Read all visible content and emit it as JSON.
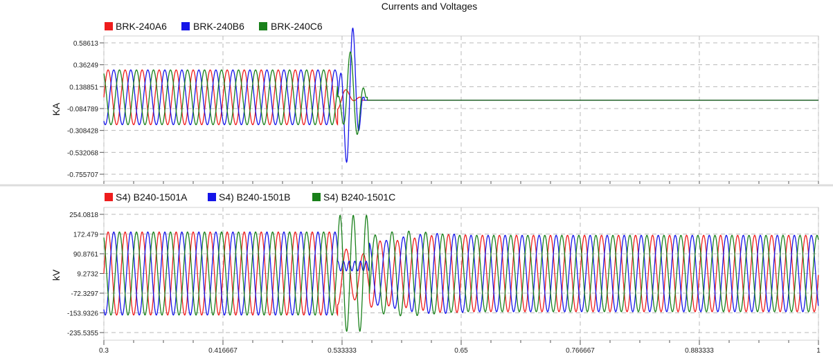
{
  "window": {
    "title": "Currents and Voltages"
  },
  "colors": {
    "phase_a": "#ee1c1c",
    "phase_b": "#1515e8",
    "phase_c": "#19801a",
    "grid": "#b8b8b8",
    "axis": "#555555",
    "tick_text": "#222222"
  },
  "chart_data": [
    {
      "type": "line",
      "title": "Currents and Voltages",
      "ylabel": "KA",
      "xlim": [
        0.3,
        1.0
      ],
      "ylim": [
        -0.8,
        0.65
      ],
      "yticks": [
        "0.58613",
        "0.36249",
        "0.138851",
        "-0.084789",
        "-0.308428",
        "-0.532068",
        "-0.755707"
      ],
      "ytick_values": [
        0.58613,
        0.36249,
        0.138851,
        -0.084789,
        -0.308428,
        -0.532068,
        -0.755707
      ],
      "grid": true,
      "legend_position": "top-left",
      "series": [
        {
          "name": "BRK-240A6",
          "color": "#ee1c1c",
          "description_points": {
            "frequency_hz": 60,
            "amplitude_before_fault": 0.28,
            "offset": 0.03,
            "fault_start": 0.529,
            "clear_time": 0.552,
            "value_after_clear": 0.0
          }
        },
        {
          "name": "BRK-240B6",
          "color": "#1515e8",
          "description_points": {
            "frequency_hz": 60,
            "amplitude_before_fault": 0.28,
            "offset": 0.03,
            "peak_values": [
              0.55,
              -0.745,
              0.586,
              -0.64
            ],
            "fault_start": 0.529,
            "clear_time": 0.555,
            "value_after_clear": 0.0
          }
        },
        {
          "name": "BRK-240C6",
          "color": "#19801a",
          "description_points": {
            "frequency_hz": 60,
            "amplitude_before_fault": 0.28,
            "offset": 0.03,
            "peak_values": [
              0.36,
              -0.47,
              0.42,
              -0.45
            ],
            "fault_start": 0.529,
            "clear_time": 0.558,
            "value_after_clear": 0.0
          }
        }
      ]
    },
    {
      "type": "line",
      "ylabel": "kV",
      "xlabel": "",
      "xlim": [
        0.3,
        1.0
      ],
      "ylim": [
        -245,
        265
      ],
      "xticks": [
        "0.3",
        "0.416667",
        "0.533333",
        "0.65",
        "0.766667",
        "0.883333",
        "1"
      ],
      "xtick_values": [
        0.3,
        0.416667,
        0.533333,
        0.65,
        0.766667,
        0.883333,
        1.0
      ],
      "yticks": [
        "254.0818",
        "172.479",
        "90.8761",
        "9.2732",
        "-72.3297",
        "-153.9326",
        "-235.5355"
      ],
      "ytick_values": [
        254.0818,
        172.479,
        90.8761,
        9.2732,
        -72.3297,
        -153.9326,
        -235.5355
      ],
      "grid": true,
      "legend_position": "top-left",
      "series": [
        {
          "name": "S4) B240-1501A",
          "color": "#ee1c1c",
          "description_points": {
            "frequency_hz": 60,
            "amplitude": 172,
            "offset": 9,
            "fault_start": 0.529,
            "recovery": 0.56
          }
        },
        {
          "name": "S4) B240-1501B",
          "color": "#1515e8",
          "description_points": {
            "frequency_hz": 60,
            "amplitude": 172,
            "offset": 9,
            "fault_value": 40,
            "fault_start": 0.529,
            "recovery": 0.56
          }
        },
        {
          "name": "S4) B240-1501C",
          "color": "#19801a",
          "description_points": {
            "frequency_hz": 60,
            "amplitude": 172,
            "offset": 9,
            "peak_during_fault": 254,
            "trough_during_fault": -230,
            "fault_start": 0.529,
            "recovery": 0.56
          }
        }
      ]
    }
  ]
}
